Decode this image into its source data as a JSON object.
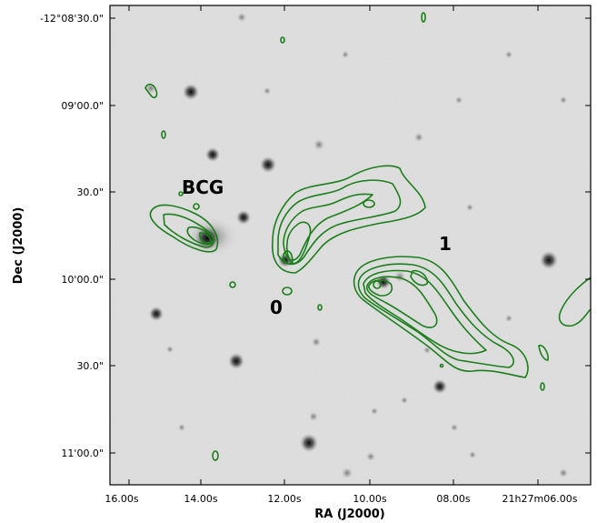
{
  "figure": {
    "xlabel": "RA (J2000)",
    "ylabel": "Dec (J2000)",
    "x_ticks": [
      "16.00s",
      "14.00s",
      "12.00s",
      "10.00s",
      "08.00s",
      "21h27m06.00s"
    ],
    "y_ticks": [
      "-12°08'30.0\"",
      "09'00.0\"",
      "30.0\"",
      "10'00.0\"",
      "30.0\"",
      "11'00.0\""
    ],
    "annotations": [
      "BCG",
      "0",
      "1"
    ],
    "contour_color": "#1a7f1a",
    "background": "grayscale optical image with radio contours"
  }
}
